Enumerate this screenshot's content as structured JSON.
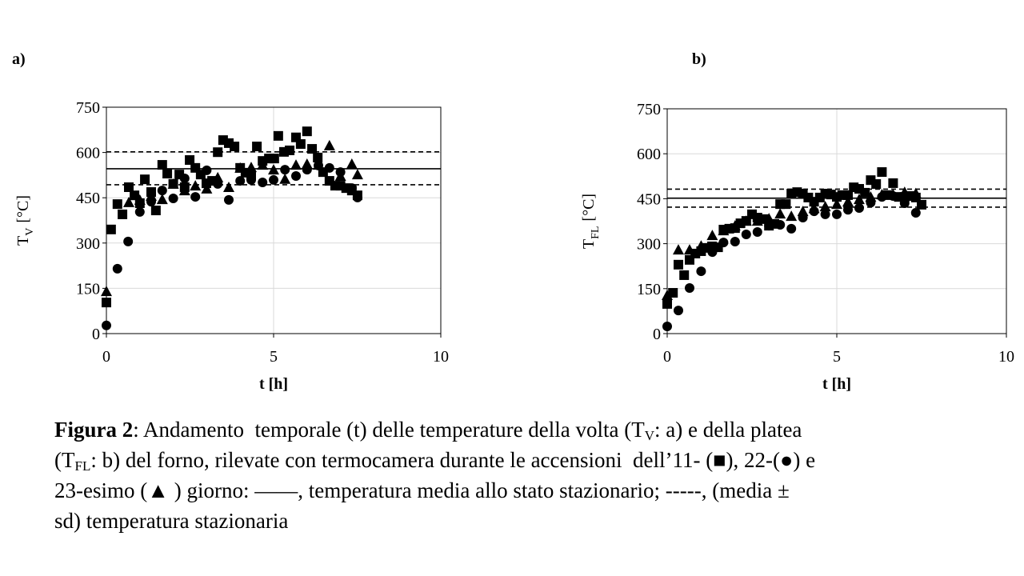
{
  "chart_data": [
    {
      "type": "scatter",
      "panel": "a)",
      "ylabel": "T",
      "ylabel_sub": "V",
      "ylabel_unit": "[°C]",
      "xlabel": "t [h]",
      "xlim": [
        0,
        10
      ],
      "xticks": [
        0,
        5,
        10
      ],
      "ylim": [
        0,
        750
      ],
      "yticks": [
        0,
        150,
        300,
        450,
        600,
        750
      ],
      "grid": true,
      "series": [
        {
          "marker": "square",
          "color": "#000000",
          "x": [
            0,
            0.14,
            0.33,
            0.48,
            0.67,
            0.84,
            1.0,
            1.15,
            1.34,
            1.48,
            1.67,
            1.82,
            2.0,
            2.18,
            2.34,
            2.49,
            2.66,
            2.82,
            2.99,
            3.16,
            3.33,
            3.49,
            3.66,
            3.83,
            4.0,
            4.16,
            4.33,
            4.5,
            4.67,
            4.86,
            5.02,
            5.14,
            5.31,
            5.48,
            5.67,
            5.81,
            6.0,
            6.15,
            6.32,
            6.48,
            6.67,
            6.84,
            7.0,
            7.17,
            7.34,
            7.51
          ],
          "values": [
            103,
            345,
            429,
            395,
            485,
            458,
            432,
            511,
            469,
            408,
            559,
            530,
            496,
            527,
            485,
            575,
            549,
            527,
            498,
            506,
            601,
            641,
            631,
            620,
            549,
            533,
            525,
            620,
            572,
            580,
            580,
            655,
            602,
            607,
            650,
            628,
            670,
            612,
            583,
            535,
            506,
            490,
            490,
            482,
            474,
            458
          ]
        },
        {
          "marker": "circle",
          "color": "#000000",
          "x": [
            0,
            0.33,
            0.65,
            1.0,
            1.34,
            1.67,
            2.0,
            2.34,
            2.66,
            3.0,
            3.33,
            3.66,
            4.0,
            4.33,
            4.67,
            5.0,
            5.34,
            5.67,
            6.0,
            6.34,
            6.67,
            7.0,
            7.34,
            7.51
          ],
          "values": [
            27,
            215,
            305,
            403,
            437,
            474,
            448,
            514,
            453,
            541,
            496,
            443,
            506,
            509,
            501,
            509,
            543,
            522,
            543,
            557,
            549,
            535,
            482,
            451
          ]
        },
        {
          "marker": "triangle",
          "color": "#000000",
          "x": [
            0,
            0.67,
            1.0,
            1.34,
            1.67,
            2.0,
            2.34,
            2.66,
            3.0,
            3.33,
            3.66,
            4.0,
            4.33,
            4.67,
            5.0,
            5.34,
            5.67,
            6.0,
            6.34,
            6.67,
            7.0,
            7.34,
            7.51
          ],
          "values": [
            140,
            435,
            443,
            456,
            445,
            496,
            474,
            490,
            480,
            517,
            485,
            549,
            551,
            559,
            543,
            512,
            559,
            562,
            559,
            623,
            522,
            562,
            527
          ]
        }
      ],
      "hlines": [
        {
          "value": 546,
          "style": "solid"
        },
        {
          "value": 602,
          "style": "dashed"
        },
        {
          "value": 493,
          "style": "dashed"
        }
      ]
    },
    {
      "type": "scatter",
      "panel": "b)",
      "ylabel": "T",
      "ylabel_sub": "FL",
      "ylabel_unit": "[°C]",
      "xlabel": "t [h]",
      "xlim": [
        0,
        10
      ],
      "xticks": [
        0,
        5,
        10
      ],
      "ylim": [
        0,
        750
      ],
      "yticks": [
        0,
        150,
        300,
        450,
        600,
        750
      ],
      "grid": true,
      "series": [
        {
          "marker": "square",
          "color": "#000000",
          "x": [
            0,
            0.17,
            0.33,
            0.5,
            0.66,
            0.83,
            1.0,
            1.16,
            1.32,
            1.5,
            1.66,
            1.83,
            2.0,
            2.16,
            2.33,
            2.5,
            2.66,
            2.83,
            3.0,
            3.16,
            3.33,
            3.5,
            3.66,
            3.83,
            4.0,
            4.16,
            4.33,
            4.5,
            4.66,
            4.83,
            5.0,
            5.16,
            5.33,
            5.5,
            5.66,
            5.83,
            6.0,
            6.16,
            6.33,
            6.5,
            6.66,
            6.83,
            7.0,
            7.16,
            7.33,
            7.5
          ],
          "values": [
            99,
            136,
            230,
            195,
            246,
            267,
            275,
            286,
            291,
            288,
            347,
            350,
            352,
            368,
            376,
            398,
            387,
            382,
            360,
            366,
            432,
            432,
            467,
            472,
            467,
            454,
            440,
            454,
            467,
            464,
            456,
            462,
            462,
            488,
            483,
            470,
            512,
            499,
            539,
            462,
            502,
            456,
            456,
            459,
            454,
            430
          ]
        },
        {
          "marker": "circle",
          "color": "#000000",
          "x": [
            0,
            0.33,
            0.66,
            1.0,
            1.33,
            1.66,
            2.0,
            2.33,
            2.66,
            3.0,
            3.33,
            3.66,
            4.0,
            4.33,
            4.66,
            5.0,
            5.33,
            5.66,
            6.0,
            6.33,
            6.66,
            7.0,
            7.33
          ],
          "values": [
            24,
            77,
            152,
            208,
            272,
            304,
            307,
            331,
            339,
            360,
            363,
            350,
            387,
            408,
            398,
            398,
            413,
            419,
            437,
            456,
            459,
            435,
            403
          ]
        },
        {
          "marker": "triangle",
          "color": "#000000",
          "x": [
            0,
            0.33,
            0.66,
            1.0,
            1.33,
            1.66,
            2.0,
            2.33,
            2.66,
            3.0,
            3.33,
            3.66,
            4.0,
            4.33,
            4.66,
            5.0,
            5.33,
            5.66,
            6.0,
            6.33,
            6.66,
            7.0,
            7.33
          ],
          "values": [
            128,
            280,
            280,
            293,
            328,
            344,
            360,
            376,
            376,
            384,
            400,
            392,
            408,
            418,
            424,
            432,
            440,
            448,
            456,
            464,
            464,
            472,
            468
          ]
        }
      ],
      "hlines": [
        {
          "value": 452,
          "style": "solid"
        },
        {
          "value": 482,
          "style": "dashed"
        },
        {
          "value": 422,
          "style": "dashed"
        }
      ]
    }
  ],
  "caption": [
    "Figura 2",
    ": Andamento  temporale (t) delle temperature della volta (T",
    "V",
    ": a) e della platea",
    "(T",
    "FL",
    ": b) del forno, rilevate con termocamera durante le accensioni  dell’11- (",
    "■",
    "), 22-(",
    "●",
    ") e",
    "23-esimo (",
    "▲",
    " ) giorno: ——, temperatura media allo stato stazionario; -----, (media ±",
    "sd) temperatura stazionaria"
  ]
}
